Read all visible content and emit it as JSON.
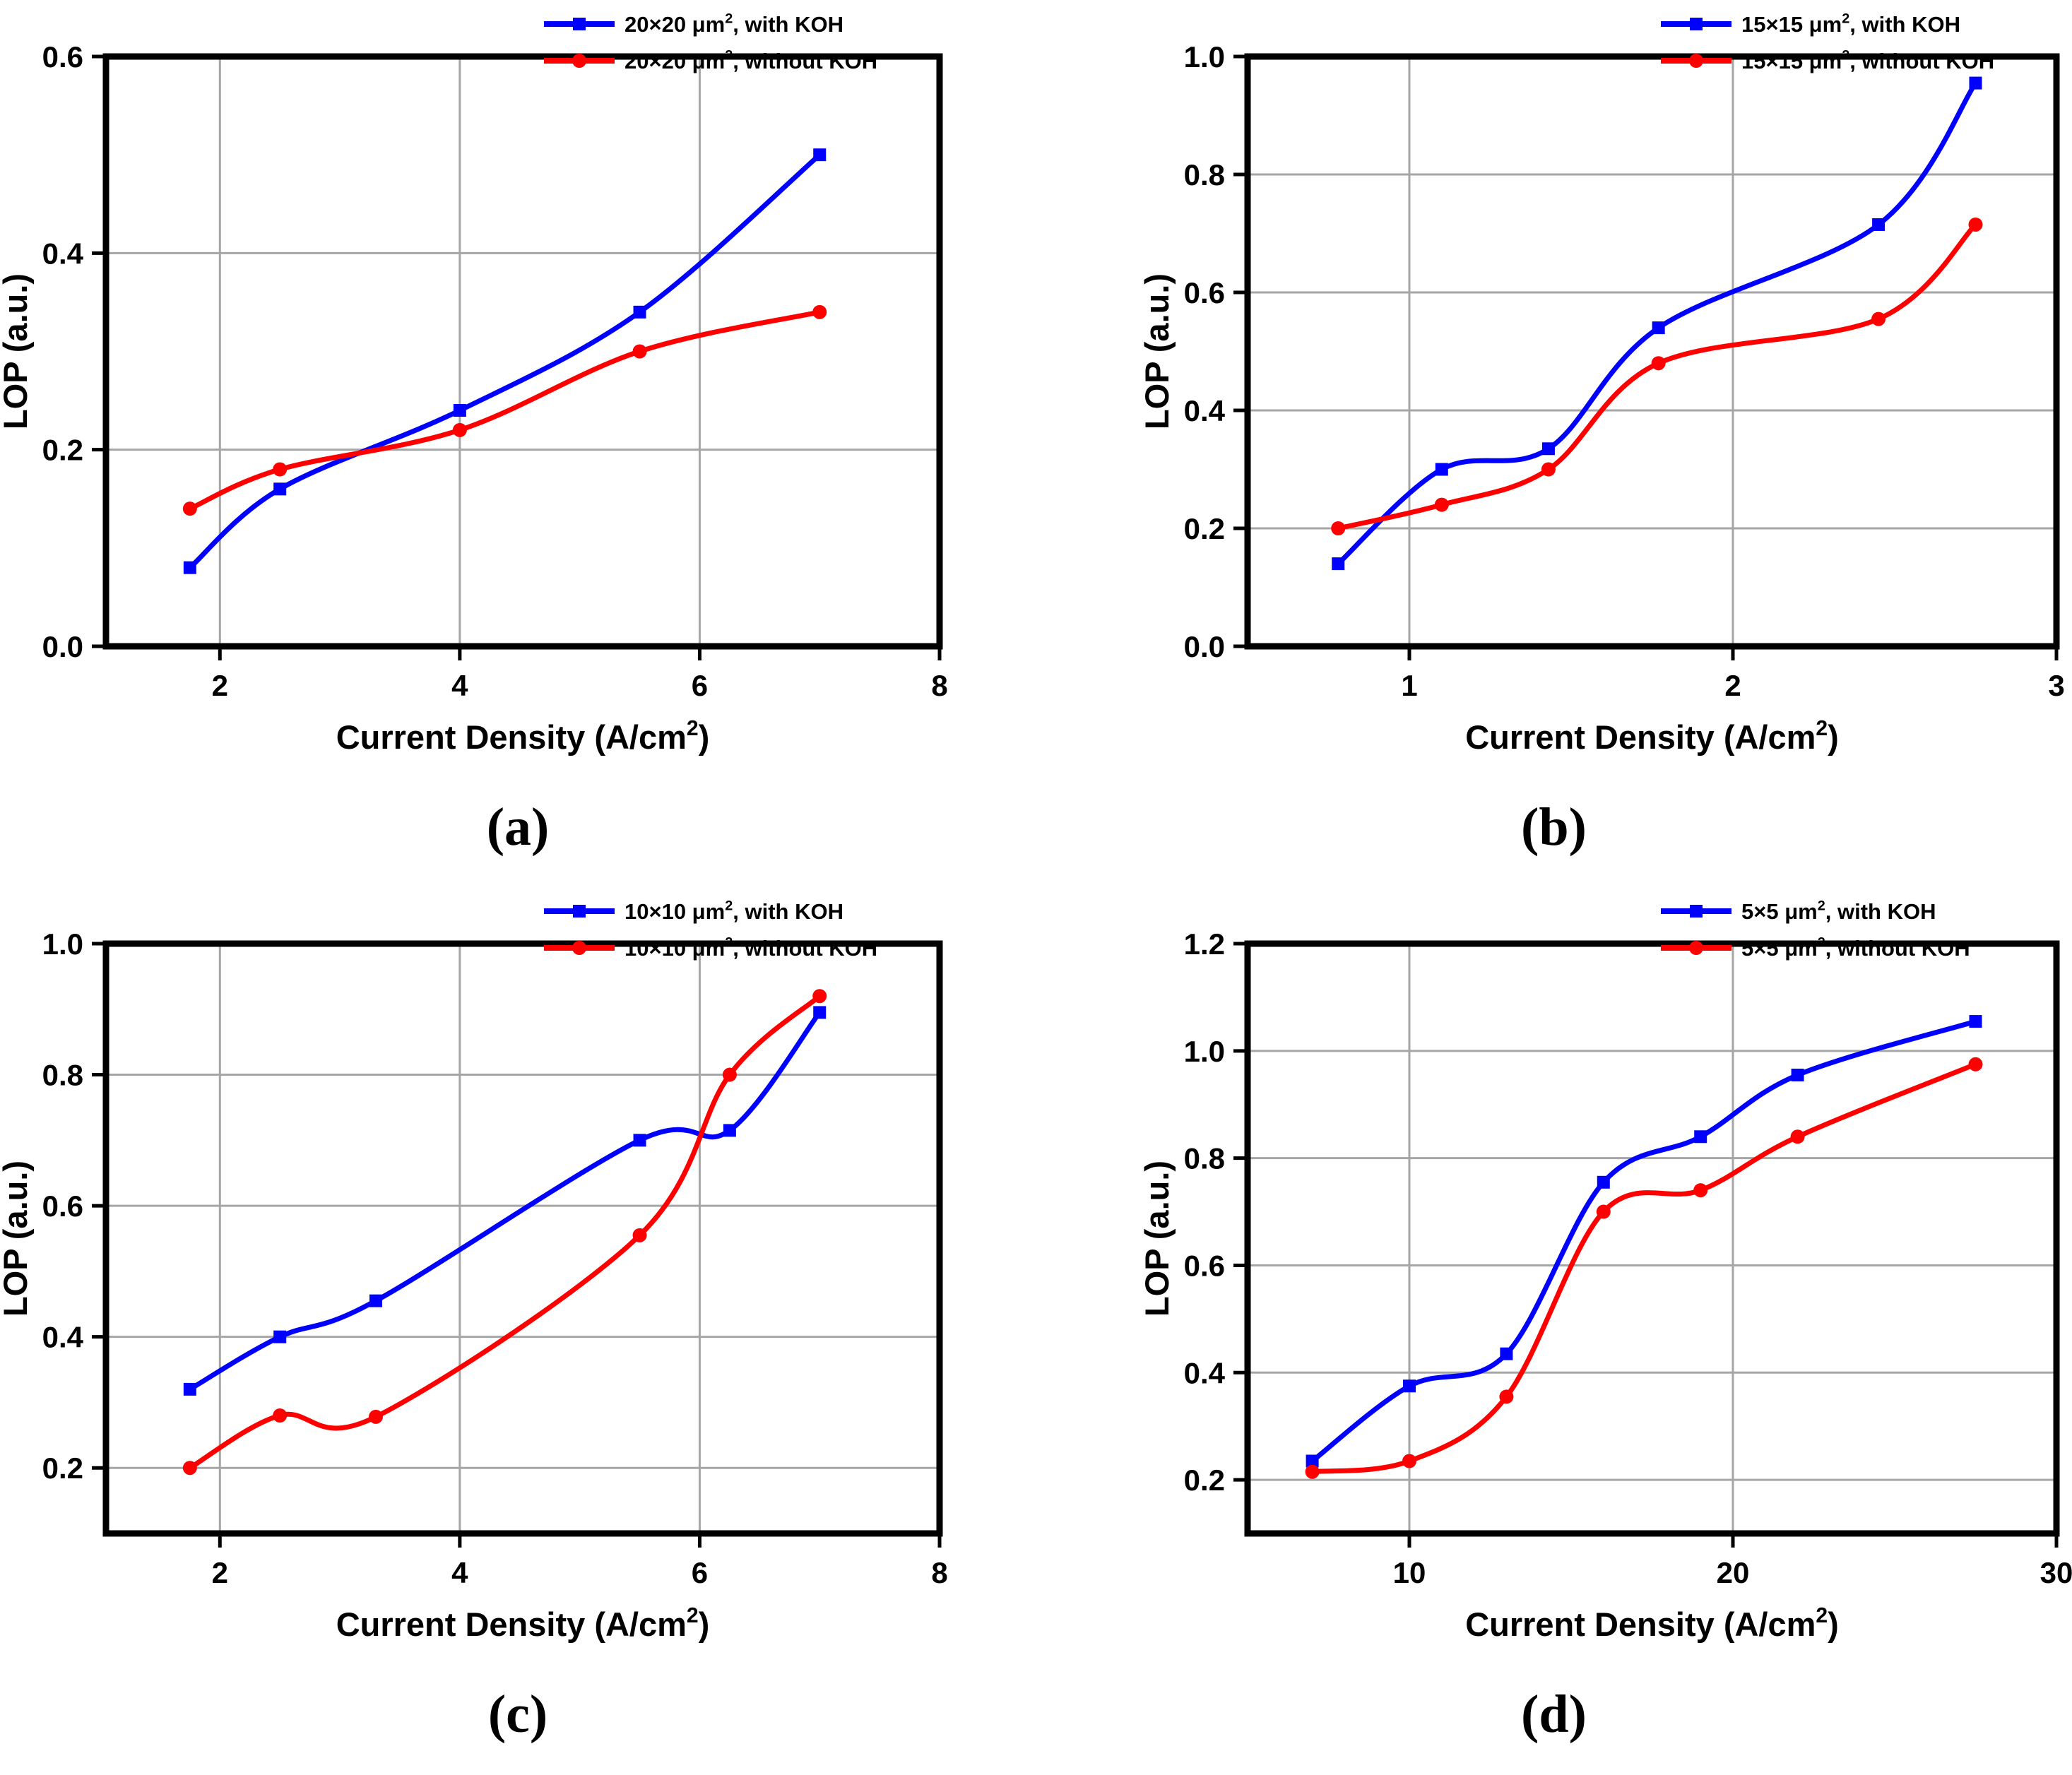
{
  "figure": {
    "ylabel": "LOP (a.u.)",
    "xlabel": "Current Density (A/cm²)",
    "colors": {
      "with_koh": "#0000ff",
      "without_koh": "#ff0000",
      "grid": "#a6a6a6",
      "axis": "#000000",
      "text": "#000000"
    },
    "legend_position": "top-right",
    "grid": "on"
  },
  "chart_data": [
    {
      "type": "line",
      "panel": "(a)",
      "xlabel": "Current Density (A/cm²)",
      "ylabel": "LOP (a.u.)",
      "xlim": [
        1.05,
        8
      ],
      "ylim": [
        0.0,
        0.6
      ],
      "xticks": [
        2,
        4,
        6,
        8
      ],
      "yticks": [
        0.0,
        0.2,
        0.4,
        0.6
      ],
      "series": [
        {
          "name": "20×20 μm², with KOH",
          "color": "#0000ff",
          "marker": "square",
          "points": [
            [
              1.75,
              0.08
            ],
            [
              2.5,
              0.16
            ],
            [
              4.0,
              0.24
            ],
            [
              5.5,
              0.34
            ],
            [
              7.0,
              0.5
            ]
          ]
        },
        {
          "name": "20×20 μm², without KOH",
          "color": "#ff0000",
          "marker": "circle",
          "points": [
            [
              1.75,
              0.14
            ],
            [
              2.5,
              0.18
            ],
            [
              4.0,
              0.22
            ],
            [
              5.5,
              0.3
            ],
            [
              7.0,
              0.34
            ]
          ]
        }
      ]
    },
    {
      "type": "line",
      "panel": "(b)",
      "xlabel": "Current Density (A/cm²)",
      "ylabel": "LOP (a.u.)",
      "xlim": [
        0.5,
        3.0
      ],
      "ylim": [
        0.0,
        1.0
      ],
      "xticks": [
        1,
        2,
        3
      ],
      "yticks": [
        0.0,
        0.2,
        0.4,
        0.6,
        0.8,
        1.0
      ],
      "series": [
        {
          "name": "15×15 μm², with KOH",
          "color": "#0000ff",
          "marker": "square",
          "points": [
            [
              0.78,
              0.14
            ],
            [
              1.1,
              0.3
            ],
            [
              1.43,
              0.335
            ],
            [
              1.77,
              0.54
            ],
            [
              2.45,
              0.715
            ],
            [
              2.75,
              0.955
            ]
          ]
        },
        {
          "name": "15×15 μm², without KOH",
          "color": "#ff0000",
          "marker": "circle",
          "points": [
            [
              0.78,
              0.2
            ],
            [
              1.1,
              0.24
            ],
            [
              1.43,
              0.3
            ],
            [
              1.77,
              0.48
            ],
            [
              2.45,
              0.555
            ],
            [
              2.75,
              0.715
            ]
          ]
        }
      ]
    },
    {
      "type": "line",
      "panel": "(c)",
      "xlabel": "Current Density (A/cm²)",
      "ylabel": "LOP (a.u.)",
      "xlim": [
        1.05,
        8
      ],
      "ylim": [
        0.1,
        1.0
      ],
      "xticks": [
        2,
        4,
        6,
        8
      ],
      "yticks": [
        0.2,
        0.4,
        0.6,
        0.8,
        1.0
      ],
      "series": [
        {
          "name": "10×10 μm², with KOH",
          "color": "#0000ff",
          "marker": "square",
          "points": [
            [
              1.75,
              0.32
            ],
            [
              2.5,
              0.4
            ],
            [
              3.3,
              0.455
            ],
            [
              5.5,
              0.7
            ],
            [
              6.25,
              0.715
            ],
            [
              7.0,
              0.895
            ]
          ]
        },
        {
          "name": "10×10 μm², without KOH",
          "color": "#ff0000",
          "marker": "circle",
          "points": [
            [
              1.75,
              0.2
            ],
            [
              2.5,
              0.28
            ],
            [
              3.3,
              0.278
            ],
            [
              5.5,
              0.555
            ],
            [
              6.25,
              0.8
            ],
            [
              7.0,
              0.92
            ]
          ]
        }
      ]
    },
    {
      "type": "line",
      "panel": "(d)",
      "xlabel": "Current Density (A/cm²)",
      "ylabel": "LOP (a.u.)",
      "xlim": [
        5,
        30
      ],
      "ylim": [
        0.1,
        1.2
      ],
      "xticks": [
        10,
        20,
        30
      ],
      "yticks": [
        0.2,
        0.4,
        0.6,
        0.8,
        1.0,
        1.2
      ],
      "series": [
        {
          "name": "5×5 μm², with KOH",
          "color": "#0000ff",
          "marker": "square",
          "points": [
            [
              7,
              0.235
            ],
            [
              10,
              0.375
            ],
            [
              13,
              0.435
            ],
            [
              16,
              0.755
            ],
            [
              19,
              0.84
            ],
            [
              22,
              0.955
            ],
            [
              27.5,
              1.055
            ]
          ]
        },
        {
          "name": "5×5 μm², without KOH",
          "color": "#ff0000",
          "marker": "circle",
          "points": [
            [
              7,
              0.215
            ],
            [
              10,
              0.235
            ],
            [
              13,
              0.355
            ],
            [
              16,
              0.7
            ],
            [
              19,
              0.74
            ],
            [
              22,
              0.84
            ],
            [
              27.5,
              0.975
            ]
          ]
        }
      ]
    }
  ]
}
